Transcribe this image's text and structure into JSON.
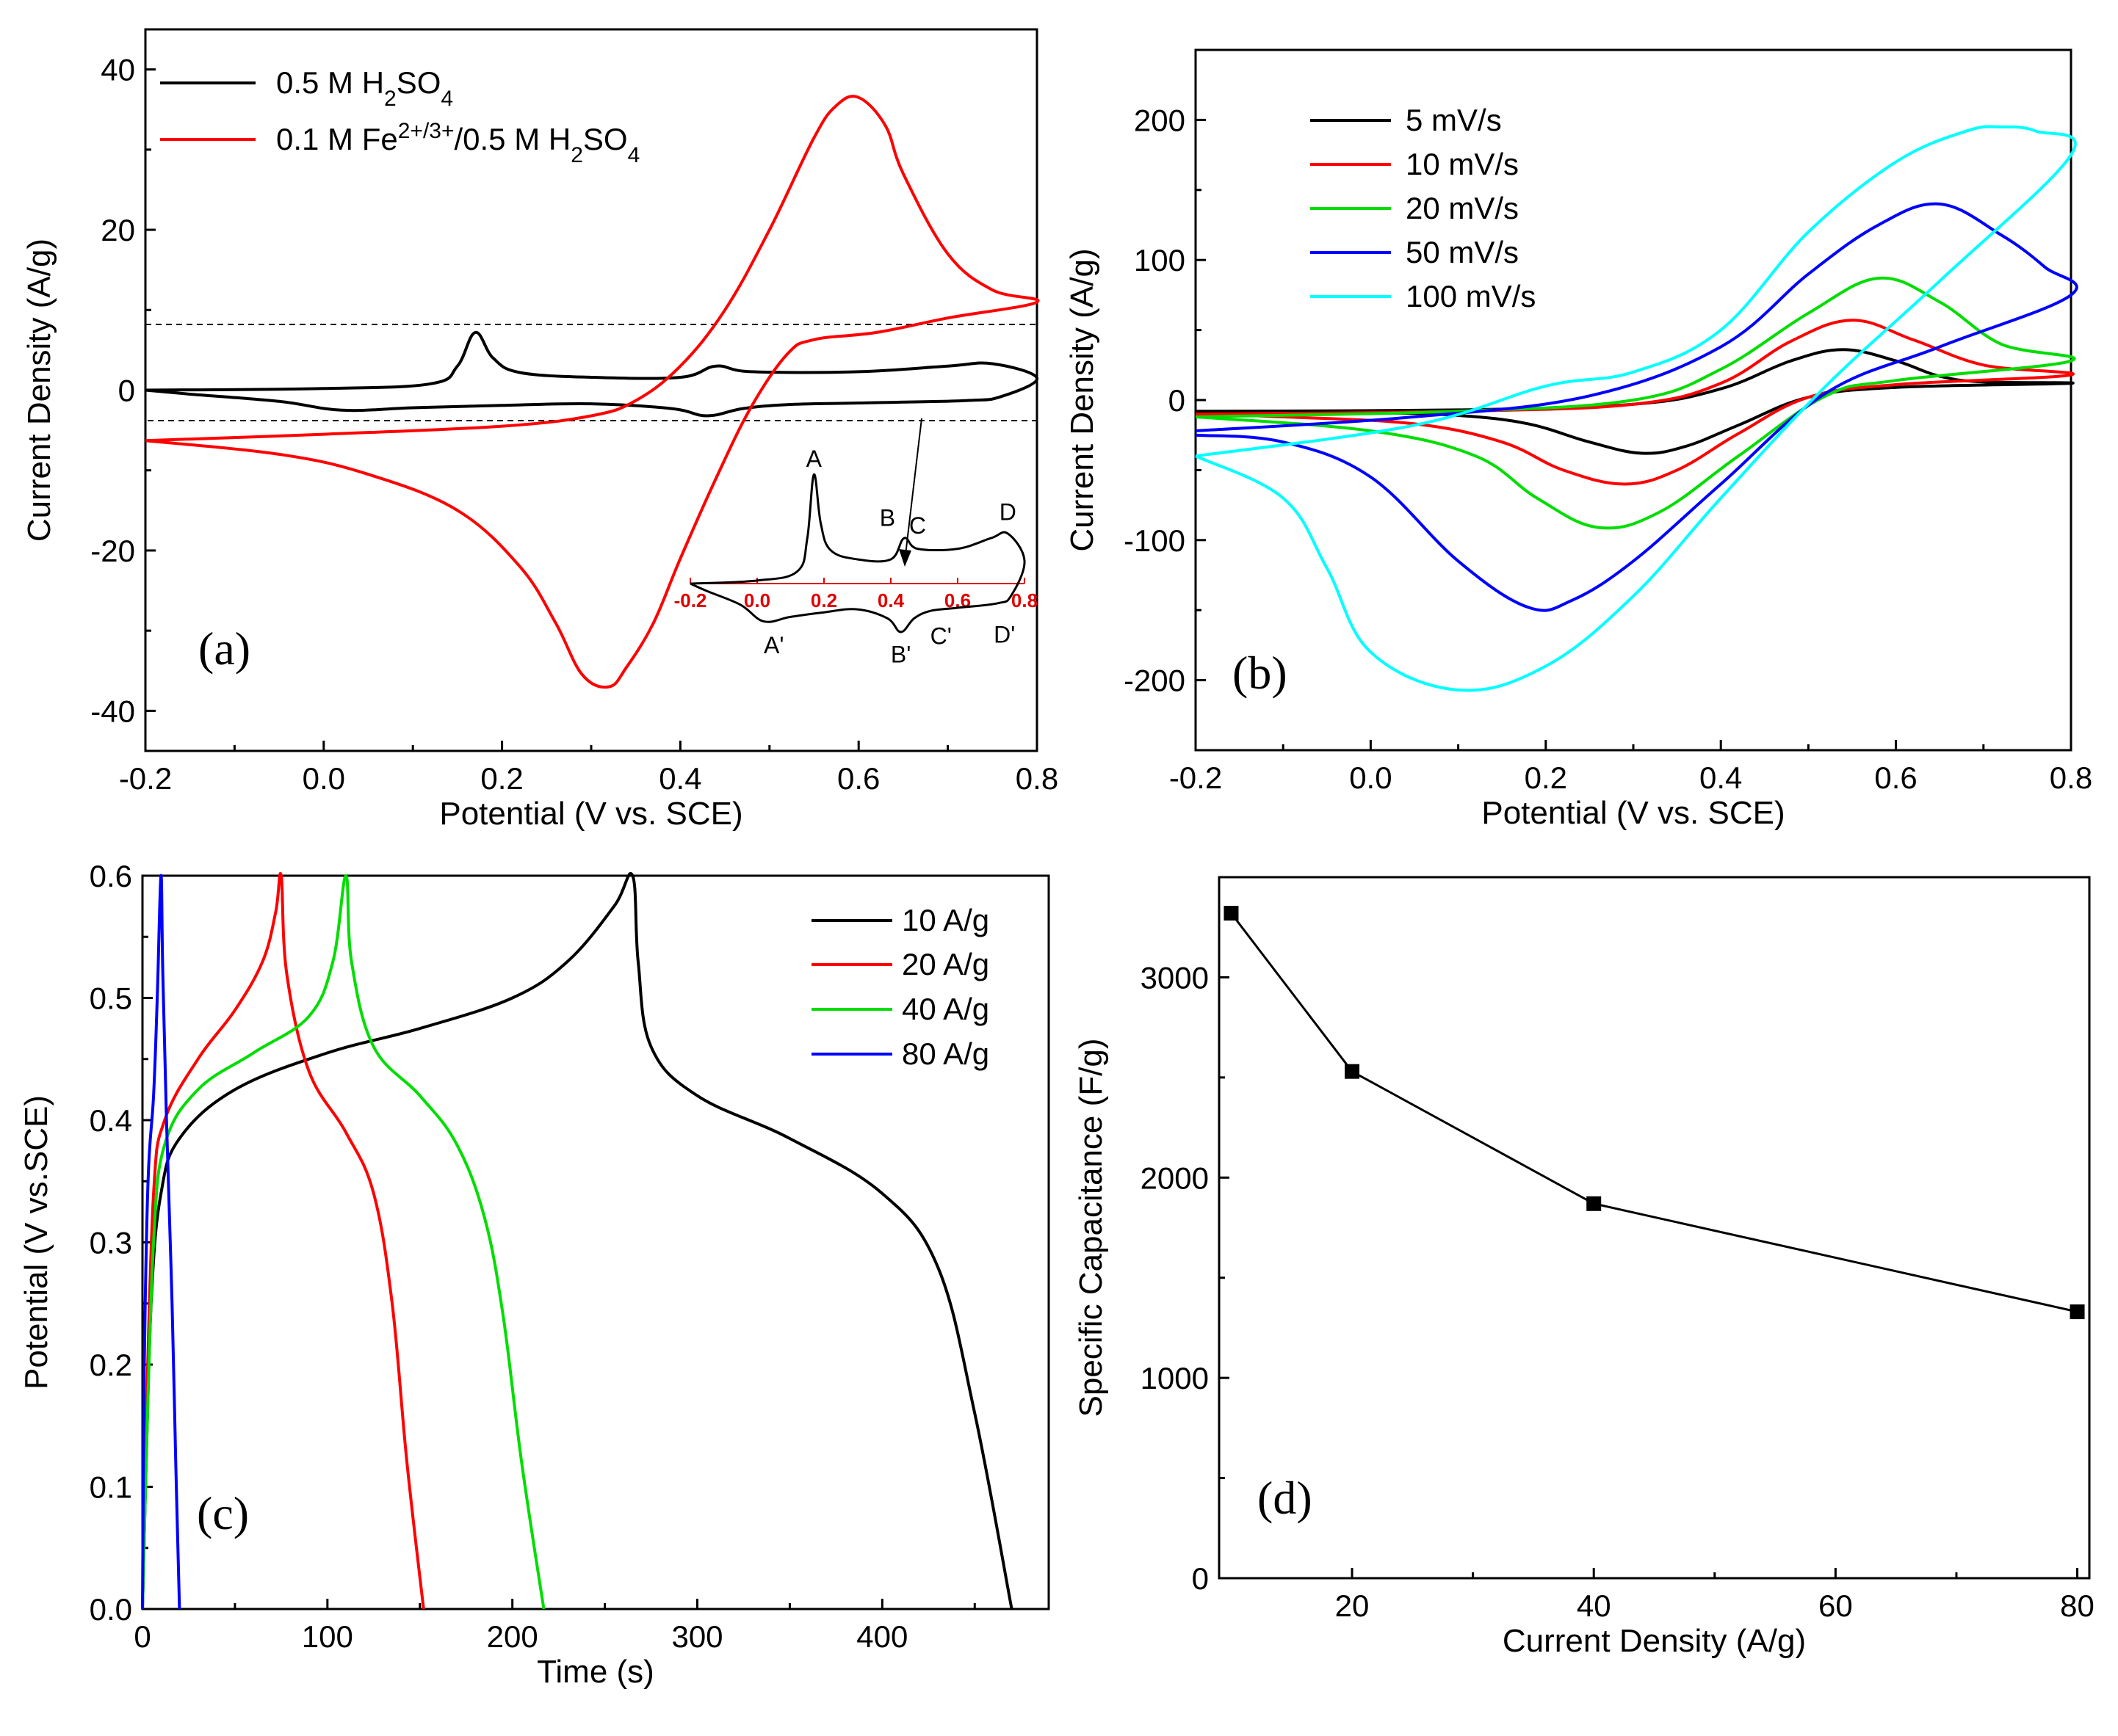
{
  "colors": {
    "black": "#000000",
    "red": "#ff0000",
    "green": "#00dd00",
    "blue": "#0000ff",
    "cyan": "#00ffff"
  },
  "chart_data": [
    {
      "panel": "a",
      "type": "line",
      "tag": "(a)",
      "xlabel": "Potential  (V vs. SCE)",
      "ylabel": "Current Density (A/g)",
      "xlim": [
        -0.2,
        0.8
      ],
      "ylim": [
        -45,
        45
      ],
      "xticks": [
        "-0.2",
        "0.0",
        "0.2",
        "0.4",
        "0.6",
        "0.8"
      ],
      "yticks": [
        "-40",
        "-20",
        "0",
        "20",
        "40"
      ],
      "legend": [
        "0.5 M H2SO4",
        "0.1 M Fe2+/3+/0.5 M H2SO4"
      ],
      "series": [
        {
          "name": "0.5 M H2SO4",
          "color": "#000000",
          "anodic": [
            [
              -0.2,
              0
            ],
            [
              0.0,
              0.2
            ],
            [
              0.12,
              0.8
            ],
            [
              0.15,
              3
            ],
            [
              0.17,
              7.2
            ],
            [
              0.19,
              4
            ],
            [
              0.22,
              2.2
            ],
            [
              0.3,
              1.6
            ],
            [
              0.4,
              1.6
            ],
            [
              0.44,
              3
            ],
            [
              0.48,
              2.3
            ],
            [
              0.6,
              2.3
            ],
            [
              0.7,
              3
            ],
            [
              0.75,
              3.3
            ],
            [
              0.8,
              1.5
            ]
          ],
          "cathodic": [
            [
              0.8,
              1.5
            ],
            [
              0.76,
              -0.8
            ],
            [
              0.72,
              -1.3
            ],
            [
              0.6,
              -1.6
            ],
            [
              0.52,
              -1.8
            ],
            [
              0.47,
              -2.3
            ],
            [
              0.43,
              -3.2
            ],
            [
              0.39,
              -2.3
            ],
            [
              0.3,
              -1.7
            ],
            [
              0.2,
              -1.9
            ],
            [
              0.1,
              -2.2
            ],
            [
              0.02,
              -2.5
            ],
            [
              -0.05,
              -1.4
            ],
            [
              -0.15,
              -0.5
            ],
            [
              -0.2,
              0
            ]
          ]
        },
        {
          "name": "0.1 M Fe2+/3+/0.5 M H2SO4",
          "color": "#ff0000",
          "anodic": [
            [
              -0.2,
              -6.3
            ],
            [
              0.0,
              -5.5
            ],
            [
              0.2,
              -4.5
            ],
            [
              0.3,
              -3.2
            ],
            [
              0.35,
              -1.3
            ],
            [
              0.4,
              3
            ],
            [
              0.45,
              10
            ],
            [
              0.5,
              20
            ],
            [
              0.55,
              31.5
            ],
            [
              0.575,
              35.5
            ],
            [
              0.6,
              36.5
            ],
            [
              0.63,
              33
            ],
            [
              0.65,
              27
            ],
            [
              0.7,
              17
            ],
            [
              0.75,
              12.5
            ],
            [
              0.8,
              11
            ]
          ],
          "cathodic": [
            [
              0.8,
              11
            ],
            [
              0.7,
              9
            ],
            [
              0.62,
              7.2
            ],
            [
              0.55,
              6.3
            ],
            [
              0.52,
              4.5
            ],
            [
              0.48,
              -2
            ],
            [
              0.44,
              -11
            ],
            [
              0.4,
              -21
            ],
            [
              0.37,
              -29
            ],
            [
              0.34,
              -34.5
            ],
            [
              0.32,
              -37
            ],
            [
              0.29,
              -35.5
            ],
            [
              0.26,
              -29
            ],
            [
              0.22,
              -22
            ],
            [
              0.15,
              -15
            ],
            [
              0.05,
              -10.5
            ],
            [
              -0.05,
              -8
            ],
            [
              -0.2,
              -6.3
            ]
          ]
        }
      ],
      "inset": {
        "xticks": [
          "-0.2",
          "0.0",
          "0.2",
          "0.4",
          "0.6",
          "0.8"
        ],
        "peak_labels": [
          "A",
          "B",
          "C",
          "D",
          "A'",
          "B'",
          "C'",
          "D'"
        ]
      }
    },
    {
      "panel": "b",
      "type": "line",
      "tag": "(b)",
      "xlabel": "Potential  (V vs. SCE)",
      "ylabel": "Current Density (A/g)",
      "xlim": [
        -0.2,
        0.8
      ],
      "ylim": [
        -250,
        250
      ],
      "xticks": [
        "-0.2",
        "0.0",
        "0.2",
        "0.4",
        "0.6",
        "0.8"
      ],
      "yticks": [
        "-200",
        "-100",
        "0",
        "100",
        "200"
      ],
      "legend": [
        "5 mV/s",
        "10 mV/s",
        "20 mV/s",
        "50 mV/s",
        "100 mV/s"
      ],
      "series": [
        {
          "name": "5 mV/s",
          "color": "#000000",
          "anodic": [
            [
              -0.2,
              -8
            ],
            [
              0.1,
              -7
            ],
            [
              0.3,
              -3
            ],
            [
              0.4,
              8
            ],
            [
              0.48,
              28
            ],
            [
              0.54,
              36
            ],
            [
              0.6,
              28
            ],
            [
              0.65,
              17
            ],
            [
              0.7,
              13
            ],
            [
              0.8,
              12
            ]
          ],
          "cathodic": [
            [
              0.8,
              12
            ],
            [
              0.6,
              9
            ],
            [
              0.5,
              2
            ],
            [
              0.42,
              -18
            ],
            [
              0.36,
              -33
            ],
            [
              0.31,
              -38
            ],
            [
              0.25,
              -30
            ],
            [
              0.18,
              -17
            ],
            [
              0.1,
              -11
            ],
            [
              0.0,
              -9
            ],
            [
              -0.2,
              -8
            ]
          ]
        },
        {
          "name": "10 mV/s",
          "color": "#ff0000",
          "anodic": [
            [
              -0.2,
              -10
            ],
            [
              0.1,
              -8
            ],
            [
              0.3,
              -3
            ],
            [
              0.4,
              12
            ],
            [
              0.48,
              42
            ],
            [
              0.55,
              57
            ],
            [
              0.62,
              43
            ],
            [
              0.7,
              25
            ],
            [
              0.8,
              18
            ]
          ],
          "cathodic": [
            [
              0.8,
              18
            ],
            [
              0.6,
              11
            ],
            [
              0.5,
              2
            ],
            [
              0.42,
              -24
            ],
            [
              0.35,
              -50
            ],
            [
              0.29,
              -60
            ],
            [
              0.22,
              -50
            ],
            [
              0.15,
              -30
            ],
            [
              0.05,
              -17
            ],
            [
              -0.1,
              -12
            ],
            [
              -0.2,
              -10
            ]
          ]
        },
        {
          "name": "20 mV/s",
          "color": "#00dd00",
          "anodic": [
            [
              -0.2,
              -12
            ],
            [
              0.1,
              -8
            ],
            [
              0.3,
              0
            ],
            [
              0.4,
              22
            ],
            [
              0.5,
              62
            ],
            [
              0.58,
              87
            ],
            [
              0.65,
              70
            ],
            [
              0.72,
              40
            ],
            [
              0.8,
              28
            ]
          ],
          "cathodic": [
            [
              0.8,
              28
            ],
            [
              0.6,
              14
            ],
            [
              0.52,
              3
            ],
            [
              0.42,
              -40
            ],
            [
              0.33,
              -80
            ],
            [
              0.26,
              -91
            ],
            [
              0.19,
              -70
            ],
            [
              0.12,
              -40
            ],
            [
              0.0,
              -22
            ],
            [
              -0.2,
              -12
            ]
          ]
        },
        {
          "name": "50 mV/s",
          "color": "#0000ff",
          "anodic": [
            [
              -0.2,
              -22
            ],
            [
              0.05,
              -12
            ],
            [
              0.25,
              3
            ],
            [
              0.4,
              38
            ],
            [
              0.5,
              90
            ],
            [
              0.58,
              125
            ],
            [
              0.65,
              140
            ],
            [
              0.72,
              118
            ],
            [
              0.77,
              95
            ],
            [
              0.8,
              75
            ]
          ],
          "cathodic": [
            [
              0.8,
              75
            ],
            [
              0.65,
              38
            ],
            [
              0.52,
              5
            ],
            [
              0.4,
              -60
            ],
            [
              0.3,
              -115
            ],
            [
              0.23,
              -143
            ],
            [
              0.18,
              -148
            ],
            [
              0.1,
              -115
            ],
            [
              0.0,
              -55
            ],
            [
              -0.1,
              -30
            ],
            [
              -0.2,
              -25
            ]
          ]
        },
        {
          "name": "100 mV/s",
          "color": "#00ffff",
          "anodic": [
            [
              -0.2,
              -40
            ],
            [
              0.05,
              -18
            ],
            [
              0.2,
              10
            ],
            [
              0.3,
              20
            ],
            [
              0.4,
              50
            ],
            [
              0.5,
              120
            ],
            [
              0.6,
              170
            ],
            [
              0.68,
              192
            ],
            [
              0.72,
              195
            ],
            [
              0.76,
              192
            ],
            [
              0.8,
              175
            ]
          ],
          "cathodic": [
            [
              0.8,
              175
            ],
            [
              0.65,
              85
            ],
            [
              0.52,
              10
            ],
            [
              0.4,
              -70
            ],
            [
              0.3,
              -140
            ],
            [
              0.2,
              -190
            ],
            [
              0.1,
              -207
            ],
            [
              0.0,
              -180
            ],
            [
              -0.05,
              -120
            ],
            [
              -0.1,
              -70
            ],
            [
              -0.2,
              -40
            ]
          ]
        }
      ]
    },
    {
      "panel": "c",
      "type": "line",
      "tag": "(c)",
      "xlabel": "Time (s)",
      "ylabel": "Potential (V vs.SCE)",
      "xlim": [
        0,
        490
      ],
      "ylim": [
        0,
        0.6
      ],
      "xticks": [
        "0",
        "100",
        "200",
        "300",
        "400"
      ],
      "yticks": [
        "0.0",
        "0.1",
        "0.2",
        "0.3",
        "0.4",
        "0.5",
        "0.6"
      ],
      "legend": [
        "10 A/g",
        "20 A/g",
        "40 A/g",
        "80 A/g"
      ],
      "series": [
        {
          "name": "10 A/g",
          "color": "#000000",
          "points": [
            [
              0,
              0
            ],
            [
              2,
              0.12
            ],
            [
              5,
              0.26
            ],
            [
              10,
              0.34
            ],
            [
              20,
              0.385
            ],
            [
              50,
              0.425
            ],
            [
              100,
              0.455
            ],
            [
              150,
              0.475
            ],
            [
              200,
              0.5
            ],
            [
              230,
              0.53
            ],
            [
              255,
              0.575
            ],
            [
              265,
              0.6
            ],
            [
              268,
              0.53
            ],
            [
              275,
              0.46
            ],
            [
              300,
              0.42
            ],
            [
              350,
              0.385
            ],
            [
              400,
              0.34
            ],
            [
              430,
              0.28
            ],
            [
              450,
              0.16
            ],
            [
              470,
              0
            ]
          ]
        },
        {
          "name": "20 A/g",
          "color": "#ff0000",
          "points": [
            [
              0,
              0
            ],
            [
              2,
              0.15
            ],
            [
              6,
              0.34
            ],
            [
              12,
              0.4
            ],
            [
              30,
              0.45
            ],
            [
              50,
              0.49
            ],
            [
              65,
              0.53
            ],
            [
              72,
              0.57
            ],
            [
              75,
              0.6
            ],
            [
              78,
              0.52
            ],
            [
              90,
              0.44
            ],
            [
              110,
              0.39
            ],
            [
              125,
              0.34
            ],
            [
              135,
              0.25
            ],
            [
              143,
              0.12
            ],
            [
              152,
              0
            ]
          ]
        },
        {
          "name": "40 A/g",
          "color": "#00dd00",
          "points": [
            [
              0,
              0
            ],
            [
              2,
              0.12
            ],
            [
              6,
              0.3
            ],
            [
              12,
              0.38
            ],
            [
              30,
              0.425
            ],
            [
              60,
              0.455
            ],
            [
              90,
              0.485
            ],
            [
              103,
              0.53
            ],
            [
              110,
              0.6
            ],
            [
              113,
              0.53
            ],
            [
              125,
              0.46
            ],
            [
              150,
              0.42
            ],
            [
              170,
              0.38
            ],
            [
              185,
              0.32
            ],
            [
              195,
              0.24
            ],
            [
              205,
              0.12
            ],
            [
              217,
              0
            ]
          ]
        },
        {
          "name": "80 A/g",
          "color": "#0000ff",
          "points": [
            [
              0,
              0
            ],
            [
              1,
              0.2
            ],
            [
              3,
              0.35
            ],
            [
              6,
              0.42
            ],
            [
              8,
              0.5
            ],
            [
              10,
              0.6
            ],
            [
              11,
              0.52
            ],
            [
              13,
              0.4
            ],
            [
              16,
              0.25
            ],
            [
              18,
              0.12
            ],
            [
              20,
              0
            ]
          ]
        }
      ]
    },
    {
      "panel": "d",
      "type": "line",
      "tag": "(d)",
      "xlabel": "Current Density (A/g)",
      "ylabel": "Specific Capacitance (F/g)",
      "xlim": [
        9,
        81
      ],
      "ylim": [
        0,
        3500
      ],
      "xticks": [
        "20",
        "40",
        "60",
        "80"
      ],
      "yticks": [
        "0",
        "1000",
        "2000",
        "3000"
      ],
      "series": [
        {
          "name": "capacitance",
          "color": "#000000",
          "x": [
            10,
            20,
            40,
            80
          ],
          "y": [
            3320,
            2530,
            1870,
            1330
          ]
        }
      ]
    }
  ]
}
